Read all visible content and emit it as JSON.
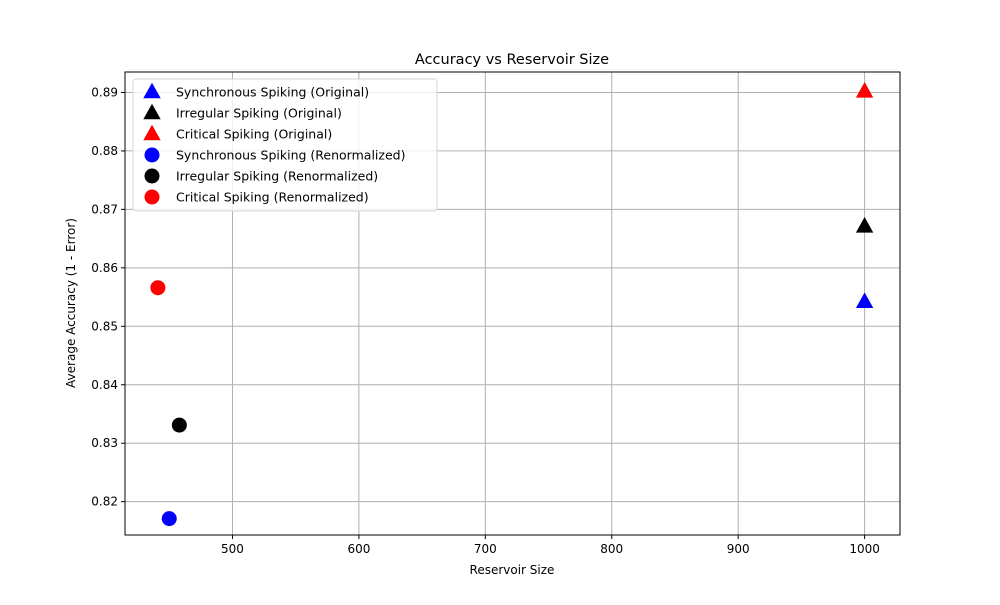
{
  "chart_data": {
    "type": "scatter",
    "title": "Accuracy vs Reservoir Size",
    "xlabel": "Reservoir Size",
    "ylabel": "Average Accuracy (1 - Error)",
    "xlim": [
      415,
      1028
    ],
    "ylim": [
      0.8143,
      0.8935
    ],
    "xticks": [
      500,
      600,
      700,
      800,
      900,
      1000
    ],
    "yticks": [
      0.82,
      0.83,
      0.84,
      0.85,
      0.86,
      0.87,
      0.88,
      0.89
    ],
    "grid": true,
    "legend_position": "top-left",
    "series": [
      {
        "name": "Synchronous Spiking (Original)",
        "marker": "triangle",
        "color": "#0000ff",
        "points": [
          {
            "x": 1000,
            "y": 0.8542
          }
        ]
      },
      {
        "name": "Irregular Spiking (Original)",
        "marker": "triangle",
        "color": "#000000",
        "points": [
          {
            "x": 1000,
            "y": 0.8671
          }
        ]
      },
      {
        "name": "Critical Spiking (Original)",
        "marker": "triangle",
        "color": "#ff0000",
        "points": [
          {
            "x": 1000,
            "y": 0.8902
          }
        ]
      },
      {
        "name": "Synchronous Spiking (Renormalized)",
        "marker": "circle",
        "color": "#0000ff",
        "points": [
          {
            "x": 450,
            "y": 0.8171
          }
        ]
      },
      {
        "name": "Irregular Spiking (Renormalized)",
        "marker": "circle",
        "color": "#000000",
        "points": [
          {
            "x": 458,
            "y": 0.8331
          }
        ]
      },
      {
        "name": "Critical Spiking (Renormalized)",
        "marker": "circle",
        "color": "#ff0000",
        "points": [
          {
            "x": 441,
            "y": 0.8566
          }
        ]
      }
    ]
  }
}
